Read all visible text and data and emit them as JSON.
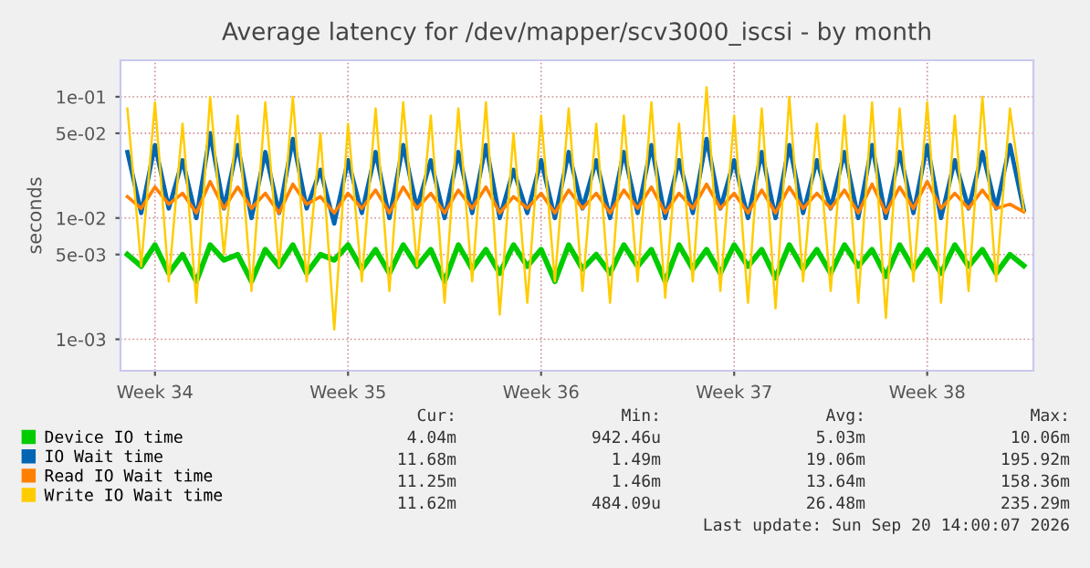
{
  "chart_data": {
    "type": "line",
    "title": "Average latency for /dev/mapper/scv3000_iscsi - by month",
    "ylabel": "seconds",
    "log": "y",
    "grid": true,
    "legend": "bottom",
    "marker": "none",
    "line_style": "solid",
    "categories": [
      null,
      null,
      "Week 34",
      null,
      null,
      null,
      null,
      null,
      null,
      null,
      null,
      null,
      null,
      null,
      null,
      null,
      "Week 35",
      null,
      null,
      null,
      null,
      null,
      null,
      null,
      null,
      null,
      null,
      null,
      null,
      null,
      "Week 36",
      null,
      null,
      null,
      null,
      null,
      null,
      null,
      null,
      null,
      null,
      null,
      null,
      null,
      "Week 37",
      null,
      null,
      null,
      null,
      null,
      null,
      null,
      null,
      null,
      null,
      null,
      null,
      null,
      "Week 38",
      null,
      null,
      null,
      null,
      null,
      null,
      null
    ],
    "ylim": [
      0.00055,
      0.2
    ],
    "yticks": [
      {
        "value": 0.001,
        "label": "1e-03"
      },
      {
        "value": 0.005,
        "label": "5e-03"
      },
      {
        "value": 0.01,
        "label": "1e-02"
      },
      {
        "value": 0.05,
        "label": "5e-02"
      },
      {
        "value": 0.1,
        "label": "1e-01"
      }
    ],
    "series": [
      {
        "name": "Device IO time",
        "color": "#00cc00",
        "values": [
          0.005,
          0.004,
          0.006,
          0.0035,
          0.005,
          0.003,
          0.006,
          0.0045,
          0.005,
          0.003,
          0.0055,
          0.004,
          0.006,
          0.0035,
          0.005,
          0.0045,
          0.006,
          0.0038,
          0.0055,
          0.0035,
          0.006,
          0.004,
          0.0055,
          0.003,
          0.006,
          0.0038,
          0.0055,
          0.0035,
          0.006,
          0.004,
          0.0055,
          0.003,
          0.006,
          0.0038,
          0.005,
          0.0035,
          0.006,
          0.004,
          0.0055,
          0.003,
          0.006,
          0.0038,
          0.0055,
          0.0035,
          0.006,
          0.004,
          0.0055,
          0.0032,
          0.006,
          0.0038,
          0.0055,
          0.0035,
          0.006,
          0.004,
          0.0055,
          0.0033,
          0.006,
          0.0038,
          0.0055,
          0.0035,
          0.006,
          0.004,
          0.0055,
          0.0035,
          0.005,
          0.00404
        ]
      },
      {
        "name": "IO Wait time",
        "color": "#0066b3",
        "values": [
          0.035,
          0.011,
          0.04,
          0.012,
          0.03,
          0.01,
          0.05,
          0.012,
          0.04,
          0.01,
          0.035,
          0.011,
          0.045,
          0.012,
          0.025,
          0.009,
          0.03,
          0.011,
          0.035,
          0.01,
          0.04,
          0.012,
          0.03,
          0.01,
          0.035,
          0.011,
          0.04,
          0.01,
          0.025,
          0.011,
          0.03,
          0.01,
          0.035,
          0.012,
          0.03,
          0.01,
          0.035,
          0.011,
          0.04,
          0.01,
          0.03,
          0.011,
          0.045,
          0.012,
          0.03,
          0.01,
          0.035,
          0.01,
          0.04,
          0.011,
          0.03,
          0.012,
          0.035,
          0.01,
          0.04,
          0.01,
          0.035,
          0.011,
          0.04,
          0.01,
          0.03,
          0.012,
          0.035,
          0.012,
          0.04,
          0.0117
        ]
      },
      {
        "name": "Read IO Wait time",
        "color": "#ff8000",
        "values": [
          0.015,
          0.012,
          0.018,
          0.013,
          0.016,
          0.011,
          0.02,
          0.012,
          0.018,
          0.012,
          0.016,
          0.011,
          0.019,
          0.013,
          0.015,
          0.011,
          0.016,
          0.012,
          0.017,
          0.011,
          0.018,
          0.012,
          0.016,
          0.011,
          0.017,
          0.012,
          0.018,
          0.011,
          0.015,
          0.012,
          0.016,
          0.011,
          0.017,
          0.012,
          0.016,
          0.011,
          0.017,
          0.012,
          0.018,
          0.011,
          0.016,
          0.012,
          0.019,
          0.012,
          0.016,
          0.011,
          0.017,
          0.011,
          0.018,
          0.012,
          0.016,
          0.012,
          0.017,
          0.011,
          0.019,
          0.011,
          0.018,
          0.012,
          0.02,
          0.012,
          0.016,
          0.012,
          0.017,
          0.012,
          0.013,
          0.01125
        ]
      },
      {
        "name": "Write IO Wait time",
        "color": "#ffcc00",
        "values": [
          0.08,
          0.004,
          0.09,
          0.003,
          0.06,
          0.002,
          0.1,
          0.005,
          0.07,
          0.0025,
          0.09,
          0.004,
          0.1,
          0.003,
          0.05,
          0.0012,
          0.06,
          0.003,
          0.08,
          0.0025,
          0.09,
          0.004,
          0.07,
          0.002,
          0.08,
          0.003,
          0.09,
          0.0016,
          0.05,
          0.002,
          0.07,
          0.003,
          0.08,
          0.0025,
          0.06,
          0.002,
          0.07,
          0.003,
          0.09,
          0.0022,
          0.06,
          0.003,
          0.12,
          0.0025,
          0.07,
          0.002,
          0.08,
          0.0018,
          0.1,
          0.003,
          0.06,
          0.0025,
          0.07,
          0.002,
          0.09,
          0.0015,
          0.08,
          0.003,
          0.09,
          0.002,
          0.07,
          0.0025,
          0.1,
          0.003,
          0.08,
          0.01162
        ]
      }
    ],
    "annotations": [
      "Cur:",
      "Min:",
      "Avg:",
      "Max:",
      "4.04m",
      "942.46u",
      "5.03m",
      "10.06m",
      "11.68m",
      "1.49m",
      "19.06m",
      "195.92m",
      "11.25m",
      "1.46m",
      "13.64m",
      "158.36m",
      "11.62m",
      "484.09u",
      "26.48m",
      "235.29m",
      "Last update: Sun Sep 20 14:00:07 2026"
    ]
  }
}
